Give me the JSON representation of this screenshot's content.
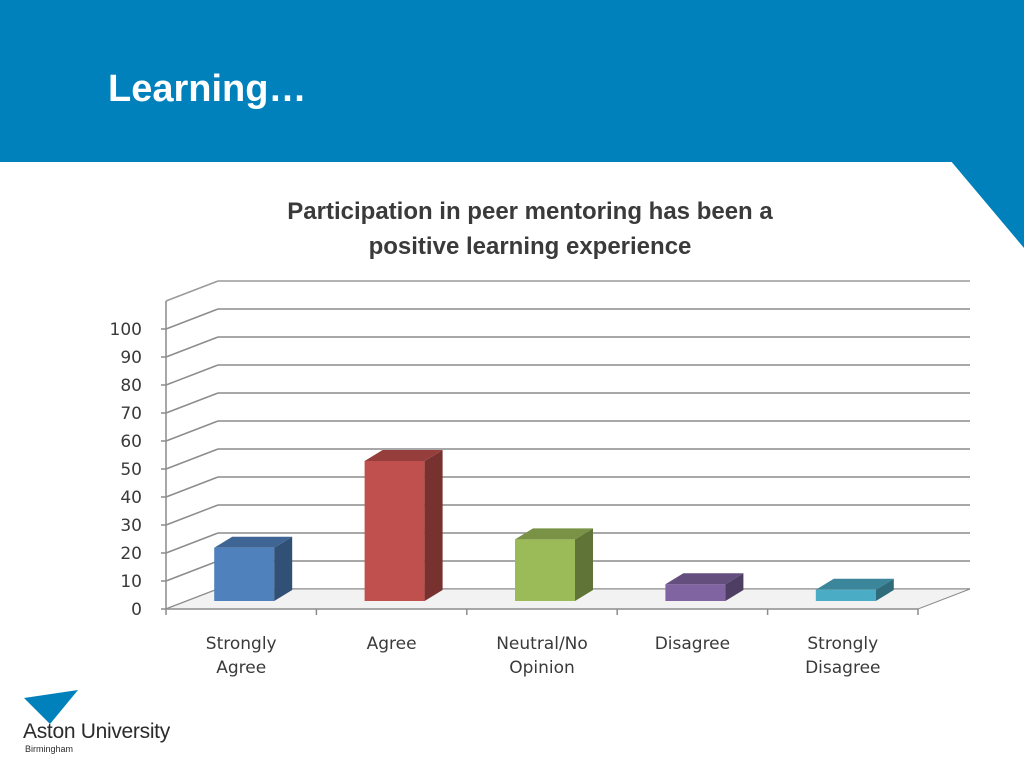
{
  "slide": {
    "title": "Learning…",
    "banner_color": "#0081bc"
  },
  "logo": {
    "name": "Aston University",
    "city": "Birmingham",
    "icon": "triangle-icon",
    "color": "#0081bc"
  },
  "chart_data": {
    "type": "bar",
    "style": "3d",
    "title_lines": [
      "Participation in peer mentoring has been a",
      "positive learning experience"
    ],
    "categories": [
      [
        "Strongly",
        "Agree"
      ],
      [
        "Agree"
      ],
      [
        "Neutral/No",
        "Opinion"
      ],
      [
        "Disagree"
      ],
      [
        "Strongly",
        "Disagree"
      ]
    ],
    "values": [
      19,
      50,
      22,
      6,
      4
    ],
    "colors": [
      "#4f81bd",
      "#c0504d",
      "#9bbb59",
      "#8064a2",
      "#4bacc6"
    ],
    "ylim": [
      0,
      100
    ],
    "yticks": [
      0,
      10,
      20,
      30,
      40,
      50,
      60,
      70,
      80,
      90,
      100
    ],
    "grid": true,
    "legend": false
  }
}
